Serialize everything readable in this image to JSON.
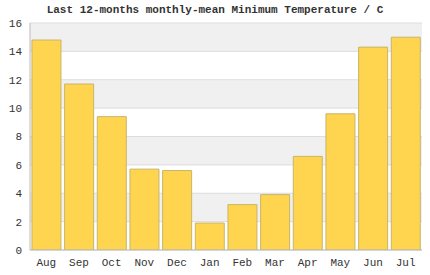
{
  "chart_data": {
    "type": "bar",
    "title": "Last 12-months monthly-mean Minimum Temperature / C",
    "categories": [
      "Aug",
      "Sep",
      "Oct",
      "Nov",
      "Dec",
      "Jan",
      "Feb",
      "Mar",
      "Apr",
      "May",
      "Jun",
      "Jul"
    ],
    "values": [
      14.8,
      11.7,
      9.4,
      5.7,
      5.6,
      1.9,
      3.2,
      3.9,
      6.6,
      9.6,
      14.3,
      15.0
    ],
    "color": "#ffd54f",
    "ylim": [
      0,
      16
    ],
    "yticks": [
      0,
      2,
      4,
      6,
      8,
      10,
      12,
      14,
      16
    ],
    "grid": true
  }
}
